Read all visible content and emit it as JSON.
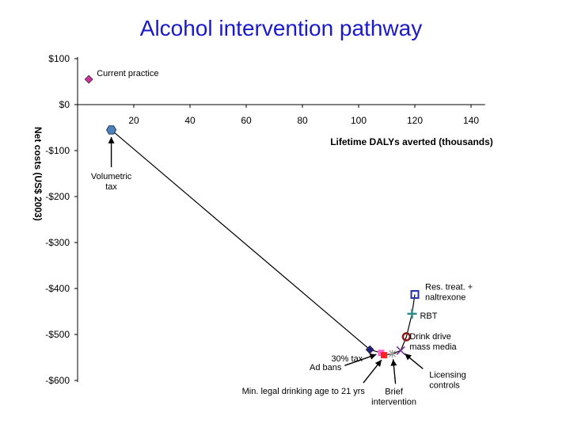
{
  "chart_data": {
    "type": "scatter",
    "title": "Alcohol intervention pathway",
    "xlabel": "Lifetime DALYs averted (thousands)",
    "ylabel": "Net costs (US$ 2003)",
    "xlim": [
      0,
      145
    ],
    "ylim": [
      -600,
      100
    ],
    "x_ticks": [
      20,
      40,
      60,
      80,
      100,
      120,
      140
    ],
    "x_tick_labels": [
      "20",
      "40",
      "60",
      "80",
      "100",
      "120",
      "140"
    ],
    "y_ticks": [
      100,
      0,
      -100,
      -200,
      -300,
      -400,
      -500,
      -600
    ],
    "y_tick_labels": [
      "$100",
      "$0",
      "-$100",
      "-$200",
      "-$300",
      "-$400",
      "-$500",
      "-$600"
    ],
    "grid": false,
    "points": [
      {
        "label": "Current practice",
        "x": 4,
        "y": 55,
        "marker": "diamond",
        "color": "#cc3399"
      },
      {
        "label": "Volumetric tax",
        "x": 12,
        "y": -55,
        "marker": "hexagon",
        "color": "#4f81bd"
      },
      {
        "label": "30% tax",
        "x": 104,
        "y": -533,
        "marker": "diamond",
        "color": "#1f1f7a"
      },
      {
        "label": "Ad bans",
        "x": 108,
        "y": -540,
        "marker": "square",
        "color": "#ff66cc"
      },
      {
        "label": "Min. legal drinking age to 21 yrs",
        "x": 109,
        "y": -545,
        "marker": "square",
        "color": "#ff2222"
      },
      {
        "label": "Brief intervention",
        "x": 112,
        "y": -542,
        "marker": "star",
        "color": "#999999"
      },
      {
        "label": "Licensing controls",
        "x": 115,
        "y": -535,
        "marker": "x",
        "color": "#7030a0"
      },
      {
        "label": "Drink drive mass media",
        "x": 117,
        "y": -505,
        "marker": "circle",
        "color": "#8b1a1a"
      },
      {
        "label": "RBT",
        "x": 119,
        "y": -455,
        "marker": "cross",
        "color": "#2e8b8b"
      },
      {
        "label": "Res. treat. + naltrexone",
        "x": 120,
        "y": -413,
        "marker": "square-open",
        "color": "#2233aa"
      }
    ],
    "series": [
      {
        "values_x": [
          12,
          104,
          108,
          109,
          112,
          115,
          117,
          119,
          120
        ],
        "values_y": [
          -55,
          -533,
          -540,
          -545,
          -542,
          -535,
          -505,
          -455,
          -413
        ]
      }
    ]
  }
}
